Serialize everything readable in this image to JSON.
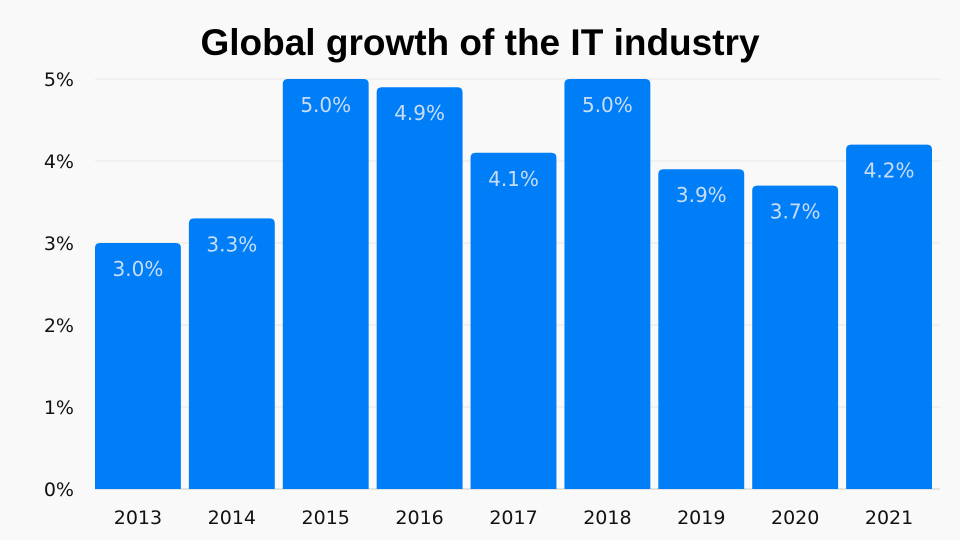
{
  "chart_data": {
    "type": "bar",
    "title": "Global growth of the IT industry",
    "xlabel": "",
    "ylabel": "",
    "categories": [
      "2013",
      "2014",
      "2015",
      "2016",
      "2017",
      "2018",
      "2019",
      "2020",
      "2021"
    ],
    "values": [
      3.0,
      3.3,
      5.0,
      4.9,
      4.1,
      5.0,
      3.9,
      3.7,
      4.2
    ],
    "data_labels": [
      "3.0%",
      "3.3%",
      "5.0%",
      "4.9%",
      "4.1%",
      "5.0%",
      "3.9%",
      "3.7%",
      "4.2%"
    ],
    "ylim": [
      0,
      5
    ],
    "yticks": [
      0,
      1,
      2,
      3,
      4,
      5
    ],
    "ytick_labels": [
      "0%",
      "1%",
      "2%",
      "3%",
      "4%",
      "5%"
    ],
    "grid": true,
    "legend": "none",
    "colors": {
      "bar": "#007ef7",
      "label": "#c9dcf5",
      "grid": "#e6e6e6",
      "background": "#f9f9f9"
    }
  }
}
